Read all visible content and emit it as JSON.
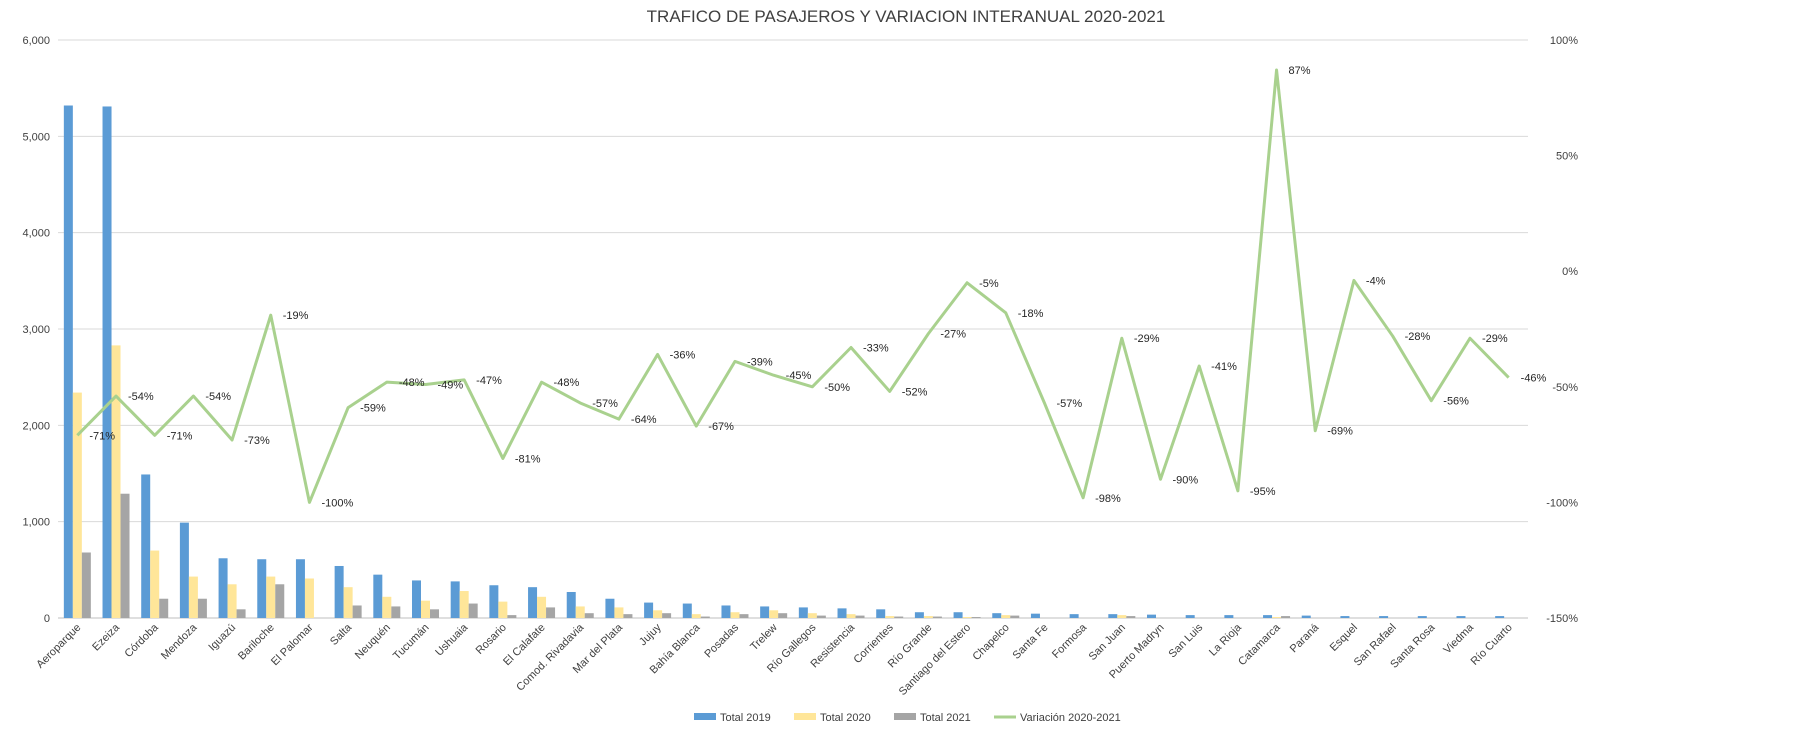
{
  "chart_data": {
    "type": "bar",
    "title": "TRAFICO DE PASAJEROS Y VARIACION INTERANUAL 2020-2021",
    "categories": [
      "Aeroparque",
      "Ezeiza",
      "Córdoba",
      "Mendoza",
      "Iguazú",
      "Bariloche",
      "El Palomar",
      "Salta",
      "Neuquén",
      "Tucumán",
      "Ushuaia",
      "Rosario",
      "El Calafate",
      "Comod. Rivadavia",
      "Mar del Plata",
      "Jujuy",
      "Bahía Blanca",
      "Posadas",
      "Trelew",
      "Río Gallegos",
      "Resistencia",
      "Corrientes",
      "Río Grande",
      "Santiago del Estero",
      "Chapelco",
      "Santa Fe",
      "Formosa",
      "San Juan",
      "Puerto Madryn",
      "San Luis",
      "La Rioja",
      "Catamarca",
      "Paraná",
      "Esquel",
      "San Rafael",
      "Santa Rosa",
      "Viedma",
      "Río Cuarto"
    ],
    "series": [
      {
        "name": "Total 2019",
        "color": "#5b9bd5",
        "values": [
          5320,
          5310,
          1490,
          990,
          620,
          610,
          610,
          540,
          450,
          390,
          380,
          340,
          320,
          270,
          200,
          160,
          150,
          130,
          120,
          110,
          100,
          90,
          60,
          60,
          50,
          45,
          40,
          40,
          35,
          30,
          30,
          30,
          25,
          20,
          20,
          20,
          20,
          20
        ]
      },
      {
        "name": "Total 2020",
        "color": "#ffe699",
        "values": [
          2340,
          2830,
          700,
          430,
          350,
          430,
          410,
          320,
          220,
          180,
          280,
          170,
          220,
          120,
          110,
          80,
          40,
          60,
          80,
          50,
          40,
          20,
          20,
          10,
          30,
          0,
          0,
          30,
          0,
          0,
          0,
          10,
          0,
          0,
          0,
          0,
          0,
          0
        ]
      },
      {
        "name": "Total 2021",
        "color": "#a5a5a5",
        "values": [
          680,
          1290,
          200,
          200,
          90,
          350,
          0,
          130,
          120,
          90,
          150,
          30,
          110,
          50,
          40,
          50,
          15,
          40,
          50,
          25,
          25,
          15,
          15,
          10,
          25,
          0,
          0,
          20,
          0,
          0,
          0,
          20,
          0,
          0,
          0,
          0,
          0,
          0
        ]
      }
    ],
    "line_series": {
      "name": "Variación 2020-2021",
      "color": "#a9d18e",
      "values": [
        -71,
        -54,
        -71,
        -54,
        -73,
        -19,
        -100,
        -59,
        -48,
        -49,
        -47,
        -81,
        -48,
        -57,
        -64,
        -36,
        -67,
        -39,
        -45,
        -50,
        -33,
        -52,
        -27,
        -5,
        -18,
        -57,
        -98,
        -29,
        -90,
        -41,
        -95,
        87,
        -69,
        -4,
        -28,
        -56,
        -29,
        -46
      ],
      "labels": [
        "-71%",
        "-54%",
        "-71%",
        "-54%",
        "-73%",
        "-19%",
        "-100%",
        "-59%",
        "-48%",
        "-49%",
        "-47%",
        "-81%",
        "-48%",
        "-57%",
        "-64%",
        "-36%",
        "-67%",
        "-39%",
        "-45%",
        "-50%",
        "-33%",
        "-52%",
        "-27%",
        "-5%",
        "-18%",
        "-57%",
        "-98%",
        "-29%",
        "-90%",
        "-41%",
        "-95%",
        "87%",
        "-69%",
        "-4%",
        "-28%",
        "-56%",
        "-29%",
        "-46%"
      ]
    },
    "y_left": {
      "ylim": [
        0,
        6000
      ],
      "ticks": [
        0,
        1000,
        2000,
        3000,
        4000,
        5000,
        6000
      ],
      "tick_labels": [
        "0",
        "1,000",
        "2,000",
        "3,000",
        "4,000",
        "5,000",
        "6,000"
      ]
    },
    "y_right": {
      "ylim": [
        -150,
        100
      ],
      "ticks": [
        -150,
        -100,
        -50,
        0,
        50,
        100
      ],
      "tick_labels": [
        "-150%",
        "-100%",
        "-50%",
        "0%",
        "50%",
        "100%"
      ]
    },
    "grid": true,
    "legend_position": "bottom-center"
  }
}
